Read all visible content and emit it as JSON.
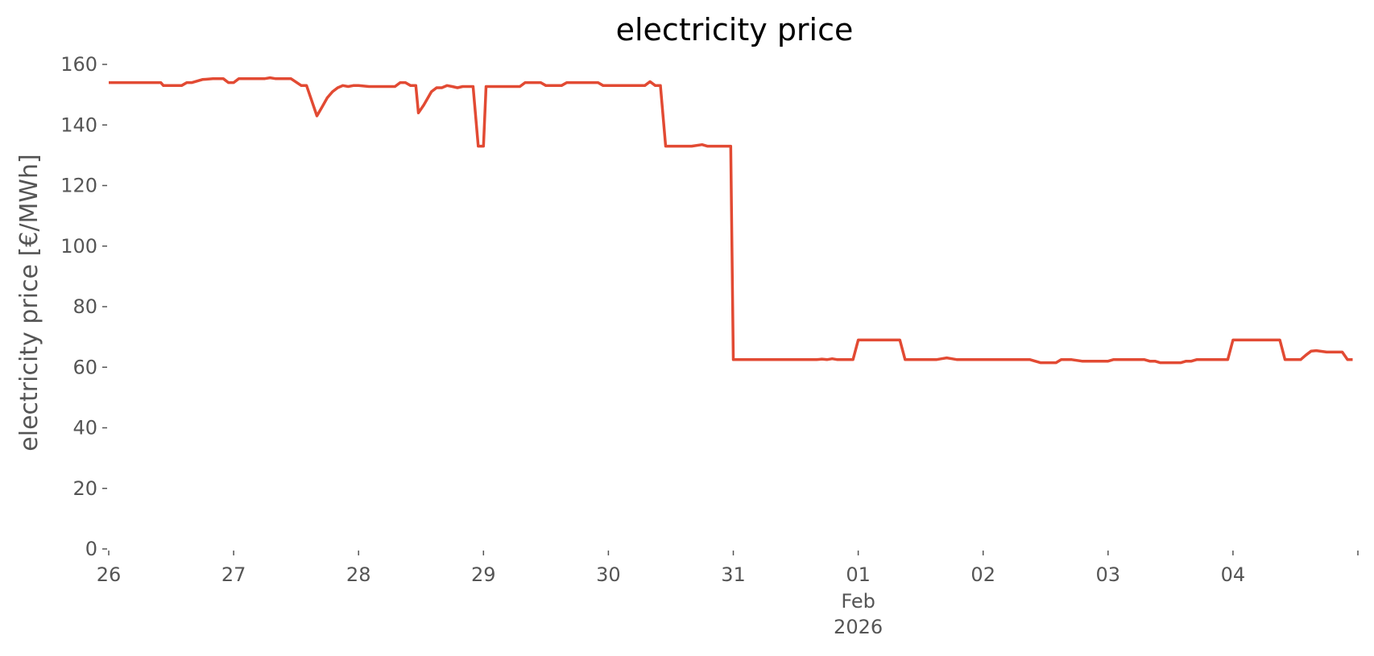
{
  "chart_data": {
    "type": "line",
    "title": "electricity price",
    "xlabel": "",
    "ylabel": "electricity price [€/MWh]",
    "ylim": [
      0,
      160
    ],
    "xlim": [
      "2026-01-26T00:00",
      "2026-02-05T00:00"
    ],
    "grid": false,
    "legend": "none",
    "x_tick_labels": [
      {
        "x": "2026-01-26",
        "label": "26"
      },
      {
        "x": "2026-01-27",
        "label": "27"
      },
      {
        "x": "2026-01-28",
        "label": "28"
      },
      {
        "x": "2026-01-29",
        "label": "29"
      },
      {
        "x": "2026-01-30",
        "label": "30"
      },
      {
        "x": "2026-01-31",
        "label": "31"
      },
      {
        "x": "2026-02-01",
        "label": "01"
      },
      {
        "x": "2026-02-02",
        "label": "02"
      },
      {
        "x": "2026-02-03",
        "label": "03"
      },
      {
        "x": "2026-02-04",
        "label": "04"
      },
      {
        "x": "2026-02-05",
        "label": ""
      }
    ],
    "x_secondary_label": {
      "x": "2026-02-01",
      "lines": [
        "Feb",
        "2026"
      ]
    },
    "y_ticks": [
      0,
      20,
      40,
      60,
      80,
      100,
      120,
      140,
      160
    ],
    "series": [
      {
        "color": "#e24a33",
        "points": [
          [
            "2026-01-26T00:00",
            154
          ],
          [
            "2026-01-26T10:00",
            154
          ],
          [
            "2026-01-26T10:30",
            153
          ],
          [
            "2026-01-26T14:00",
            153
          ],
          [
            "2026-01-26T15:00",
            154
          ],
          [
            "2026-01-26T16:00",
            154
          ],
          [
            "2026-01-26T18:00",
            155
          ],
          [
            "2026-01-26T20:00",
            155.3
          ],
          [
            "2026-01-26T22:00",
            155.3
          ],
          [
            "2026-01-26T23:00",
            154
          ],
          [
            "2026-01-27T00:00",
            154
          ],
          [
            "2026-01-27T01:00",
            155.3
          ],
          [
            "2026-01-27T06:00",
            155.3
          ],
          [
            "2026-01-27T07:00",
            155.6
          ],
          [
            "2026-01-27T08:00",
            155.3
          ],
          [
            "2026-01-27T11:00",
            155.3
          ],
          [
            "2026-01-27T13:00",
            153
          ],
          [
            "2026-01-27T14:00",
            153
          ],
          [
            "2026-01-27T16:00",
            143
          ],
          [
            "2026-01-27T17:00",
            146
          ],
          [
            "2026-01-27T18:00",
            149
          ],
          [
            "2026-01-27T19:00",
            151
          ],
          [
            "2026-01-27T20:00",
            152.3
          ],
          [
            "2026-01-27T21:00",
            153
          ],
          [
            "2026-01-27T22:00",
            152.7
          ],
          [
            "2026-01-27T23:00",
            153
          ],
          [
            "2026-01-28T00:00",
            153
          ],
          [
            "2026-01-28T02:00",
            152.7
          ],
          [
            "2026-01-28T07:00",
            152.7
          ],
          [
            "2026-01-28T08:00",
            154
          ],
          [
            "2026-01-28T09:00",
            154
          ],
          [
            "2026-01-28T10:00",
            153
          ],
          [
            "2026-01-28T11:00",
            153
          ],
          [
            "2026-01-28T11:30",
            144
          ],
          [
            "2026-01-28T12:30",
            146.5
          ],
          [
            "2026-01-28T14:00",
            151
          ],
          [
            "2026-01-28T15:00",
            152.3
          ],
          [
            "2026-01-28T16:00",
            152.3
          ],
          [
            "2026-01-28T17:00",
            153
          ],
          [
            "2026-01-28T18:00",
            152.7
          ],
          [
            "2026-01-28T19:00",
            152.3
          ],
          [
            "2026-01-28T20:00",
            152.7
          ],
          [
            "2026-01-28T22:00",
            152.7
          ],
          [
            "2026-01-28T23:00",
            133
          ],
          [
            "2026-01-29T00:00",
            133
          ],
          [
            "2026-01-29T00:30",
            152.7
          ],
          [
            "2026-01-29T07:00",
            152.7
          ],
          [
            "2026-01-29T08:00",
            154
          ],
          [
            "2026-01-29T11:00",
            154
          ],
          [
            "2026-01-29T12:00",
            153
          ],
          [
            "2026-01-29T15:00",
            153
          ],
          [
            "2026-01-29T16:00",
            154
          ],
          [
            "2026-01-29T22:00",
            154
          ],
          [
            "2026-01-29T23:00",
            153
          ],
          [
            "2026-01-30T07:00",
            153
          ],
          [
            "2026-01-30T08:00",
            154.3
          ],
          [
            "2026-01-30T09:00",
            153
          ],
          [
            "2026-01-30T10:00",
            153
          ],
          [
            "2026-01-30T11:00",
            133
          ],
          [
            "2026-01-30T16:00",
            133
          ],
          [
            "2026-01-30T18:00",
            133.5
          ],
          [
            "2026-01-30T19:00",
            133
          ],
          [
            "2026-01-30T23:30",
            133
          ],
          [
            "2026-01-31T00:00",
            62.5
          ],
          [
            "2026-01-31T16:00",
            62.5
          ],
          [
            "2026-01-31T17:00",
            62.7
          ],
          [
            "2026-01-31T18:00",
            62.5
          ],
          [
            "2026-01-31T19:00",
            62.8
          ],
          [
            "2026-01-31T20:00",
            62.5
          ],
          [
            "2026-01-31T23:00",
            62.5
          ],
          [
            "2026-02-01T00:00",
            69
          ],
          [
            "2026-02-01T08:00",
            69
          ],
          [
            "2026-02-01T09:00",
            62.5
          ],
          [
            "2026-02-01T15:00",
            62.5
          ],
          [
            "2026-02-01T16:00",
            62.8
          ],
          [
            "2026-02-01T17:00",
            63.1
          ],
          [
            "2026-02-01T18:00",
            62.8
          ],
          [
            "2026-02-01T19:00",
            62.5
          ],
          [
            "2026-02-02T09:00",
            62.5
          ],
          [
            "2026-02-02T10:00",
            62
          ],
          [
            "2026-02-02T11:00",
            61.5
          ],
          [
            "2026-02-02T14:00",
            61.5
          ],
          [
            "2026-02-02T15:00",
            62.5
          ],
          [
            "2026-02-02T17:00",
            62.5
          ],
          [
            "2026-02-02T19:00",
            62
          ],
          [
            "2026-02-03T00:00",
            62
          ],
          [
            "2026-02-03T01:00",
            62.5
          ],
          [
            "2026-02-03T07:00",
            62.5
          ],
          [
            "2026-02-03T08:00",
            62
          ],
          [
            "2026-02-03T09:00",
            62
          ],
          [
            "2026-02-03T10:00",
            61.5
          ],
          [
            "2026-02-03T14:00",
            61.5
          ],
          [
            "2026-02-03T15:00",
            62
          ],
          [
            "2026-02-03T16:00",
            62
          ],
          [
            "2026-02-03T17:00",
            62.5
          ],
          [
            "2026-02-03T23:00",
            62.5
          ],
          [
            "2026-02-04T00:00",
            69
          ],
          [
            "2026-02-04T09:00",
            69
          ],
          [
            "2026-02-04T10:00",
            62.5
          ],
          [
            "2026-02-04T13:00",
            62.5
          ],
          [
            "2026-02-04T14:00",
            64
          ],
          [
            "2026-02-04T15:00",
            65.3
          ],
          [
            "2026-02-04T16:00",
            65.5
          ],
          [
            "2026-02-04T18:00",
            65
          ],
          [
            "2026-02-04T21:00",
            65
          ],
          [
            "2026-02-04T22:00",
            62.5
          ],
          [
            "2026-02-04T23:00",
            62.5
          ]
        ]
      }
    ]
  }
}
